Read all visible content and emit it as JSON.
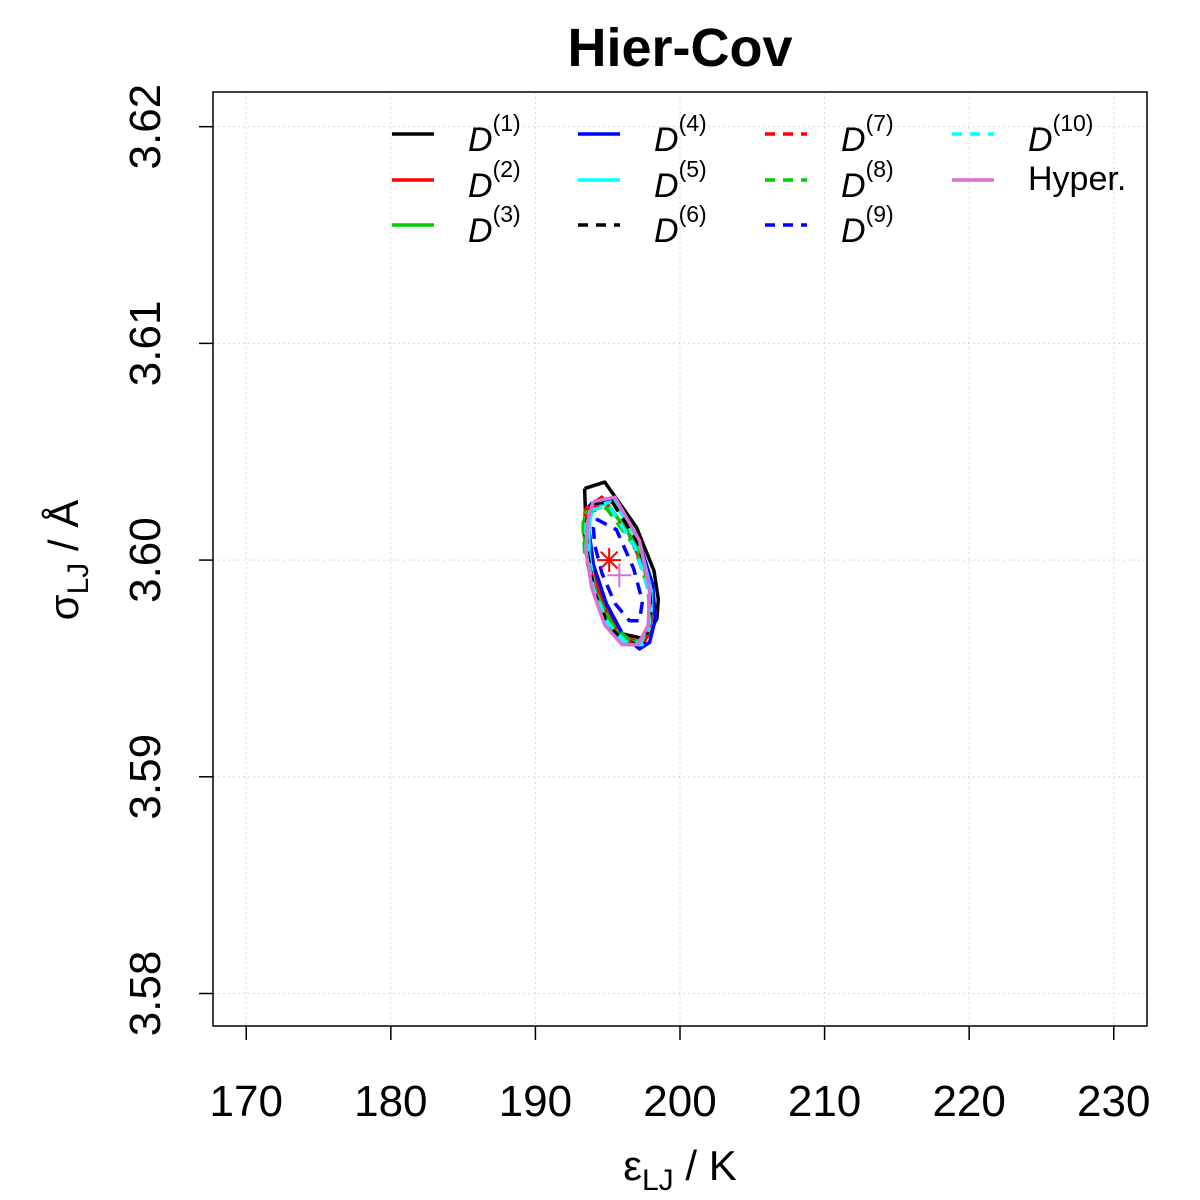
{
  "chart_data": {
    "type": "line",
    "title": "Hier-Cov",
    "xlabel": {
      "main": "ε",
      "sub": "LJ",
      "unit": " / K"
    },
    "ylabel": {
      "main": "σ",
      "sub": "LJ",
      "unit": " / Å"
    },
    "xlim": [
      167.7,
      232.3
    ],
    "ylim": [
      3.5785,
      3.6216
    ],
    "x_ticks": [
      170,
      180,
      190,
      200,
      210,
      220,
      230
    ],
    "x_tick_labels": [
      "170",
      "180",
      "190",
      "200",
      "210",
      "220",
      "230"
    ],
    "y_ticks": [
      3.58,
      3.59,
      3.6,
      3.61,
      3.62
    ],
    "y_tick_labels": [
      "3.58",
      "3.59",
      "3.60",
      "3.61",
      "3.62"
    ],
    "grid": true,
    "legend_position": "top",
    "series": [
      {
        "name": "D",
        "sup": "(1)",
        "color": "#000000",
        "dash": "solid",
        "x": [
          193.4,
          194.8,
          197.0,
          198.2,
          198.5,
          198.4,
          197.8,
          197.3,
          196.0,
          194.8,
          193.8,
          193.5,
          193.4
        ],
        "y": [
          3.6033,
          3.6036,
          3.6015,
          3.5995,
          3.5982,
          3.5973,
          3.5966,
          3.5964,
          3.5966,
          3.5978,
          3.5998,
          3.6015,
          3.6033
        ]
      },
      {
        "name": "D",
        "sup": "(2)",
        "color": "#ff0000",
        "dash": "solid",
        "x": [
          193.5,
          194.6,
          196.4,
          197.7,
          198.3,
          198.0,
          197.2,
          196.0,
          194.8,
          193.9,
          193.5,
          193.4,
          193.5
        ],
        "y": [
          3.6024,
          3.6029,
          3.6013,
          3.5993,
          3.5976,
          3.5966,
          3.5962,
          3.5965,
          3.5978,
          3.5996,
          3.6011,
          3.6019,
          3.6024
        ]
      },
      {
        "name": "D",
        "sup": "(3)",
        "color": "#00cd00",
        "dash": "solid",
        "x": [
          193.7,
          195.0,
          196.9,
          197.9,
          198.1,
          197.6,
          196.7,
          195.4,
          194.2,
          193.5,
          193.3,
          193.7
        ],
        "y": [
          3.6025,
          3.6026,
          3.6008,
          3.5988,
          3.5972,
          3.5964,
          3.5962,
          3.5969,
          3.5985,
          3.6003,
          3.6017,
          3.6025
        ]
      },
      {
        "name": "D",
        "sup": "(4)",
        "color": "#0000ff",
        "dash": "solid",
        "x": [
          193.8,
          195.3,
          197.1,
          198.1,
          198.3,
          197.9,
          197.2,
          196.1,
          194.9,
          194.0,
          193.7,
          193.8
        ],
        "y": [
          3.6026,
          3.6028,
          3.601,
          3.5989,
          3.5973,
          3.5962,
          3.5959,
          3.5965,
          3.598,
          3.5998,
          3.6014,
          3.6026
        ]
      },
      {
        "name": "D",
        "sup": "(5)",
        "color": "#00ffff",
        "dash": "solid",
        "x": [
          194.0,
          195.4,
          197.2,
          198.0,
          198.0,
          197.4,
          196.4,
          195.1,
          194.1,
          193.7,
          193.7,
          194.0
        ],
        "y": [
          3.6025,
          3.6027,
          3.6008,
          3.5986,
          3.5971,
          3.5961,
          3.5961,
          3.5969,
          3.5986,
          3.6003,
          3.6016,
          3.6025
        ]
      },
      {
        "name": "D",
        "sup": "(6)",
        "color": "#000000",
        "dash": "dashed",
        "x": [
          193.9,
          195.3,
          197.1,
          197.9,
          198.0,
          197.5,
          196.5,
          195.1,
          194.1,
          193.6,
          193.5,
          193.9
        ],
        "y": [
          3.6026,
          3.6027,
          3.6008,
          3.5987,
          3.5972,
          3.5962,
          3.5961,
          3.5969,
          3.5985,
          3.6003,
          3.6017,
          3.6026
        ]
      },
      {
        "name": "D",
        "sup": "(7)",
        "color": "#ff0000",
        "dash": "dashed",
        "x": [
          193.6,
          195.0,
          196.8,
          197.8,
          198.0,
          197.6,
          196.6,
          195.3,
          194.1,
          193.5,
          193.3,
          193.6
        ],
        "y": [
          3.6024,
          3.6025,
          3.6007,
          3.5987,
          3.5972,
          3.5963,
          3.5962,
          3.597,
          3.5986,
          3.6004,
          3.6017,
          3.6024
        ]
      },
      {
        "name": "D",
        "sup": "(8)",
        "color": "#00cd00",
        "dash": "dashed",
        "x": [
          193.4,
          194.9,
          196.9,
          197.8,
          197.9,
          197.4,
          196.5,
          195.2,
          194.0,
          193.4,
          193.3,
          193.4
        ],
        "y": [
          3.6022,
          3.6024,
          3.6006,
          3.5987,
          3.5972,
          3.5963,
          3.5963,
          3.5971,
          3.5987,
          3.6004,
          3.6015,
          3.6022
        ]
      },
      {
        "name": "D",
        "sup": "(9)",
        "color": "#0000ff",
        "dash": "dashed",
        "x": [
          194.2,
          195.6,
          196.8,
          197.4,
          197.2,
          196.5,
          195.5,
          194.6,
          194.1,
          194.0,
          194.2
        ],
        "y": [
          3.6019,
          3.6014,
          3.5996,
          3.5981,
          3.5972,
          3.5972,
          3.598,
          3.5994,
          3.6007,
          3.6015,
          3.6019
        ]
      },
      {
        "name": "D",
        "sup": "(10)",
        "color": "#00ffff",
        "dash": "dashed",
        "x": [
          193.8,
          195.1,
          196.9,
          197.8,
          197.9,
          197.3,
          196.3,
          195.0,
          194.0,
          193.5,
          193.5,
          193.8
        ],
        "y": [
          3.6023,
          3.6025,
          3.6006,
          3.5986,
          3.5971,
          3.5962,
          3.5962,
          3.5971,
          3.5987,
          3.6004,
          3.6017,
          3.6023
        ]
      },
      {
        "name": "Hyper.",
        "sup": "",
        "color": "#da70d6",
        "dash": "solid",
        "x": [
          194.0,
          195.5,
          197.2,
          197.9,
          197.8,
          197.1,
          196.0,
          194.8,
          193.9,
          193.5,
          193.6,
          194.0
        ],
        "y": [
          3.6027,
          3.6029,
          3.6009,
          3.5986,
          3.597,
          3.5961,
          3.5961,
          3.597,
          3.5987,
          3.6004,
          3.6018,
          3.6027
        ]
      }
    ],
    "points": [
      {
        "marker": "asterisk",
        "color": "#ff0000",
        "x": 195.1,
        "y": 3.6
      },
      {
        "marker": "plus",
        "color": "#da70d6",
        "x": 195.8,
        "y": 3.5993
      }
    ]
  }
}
